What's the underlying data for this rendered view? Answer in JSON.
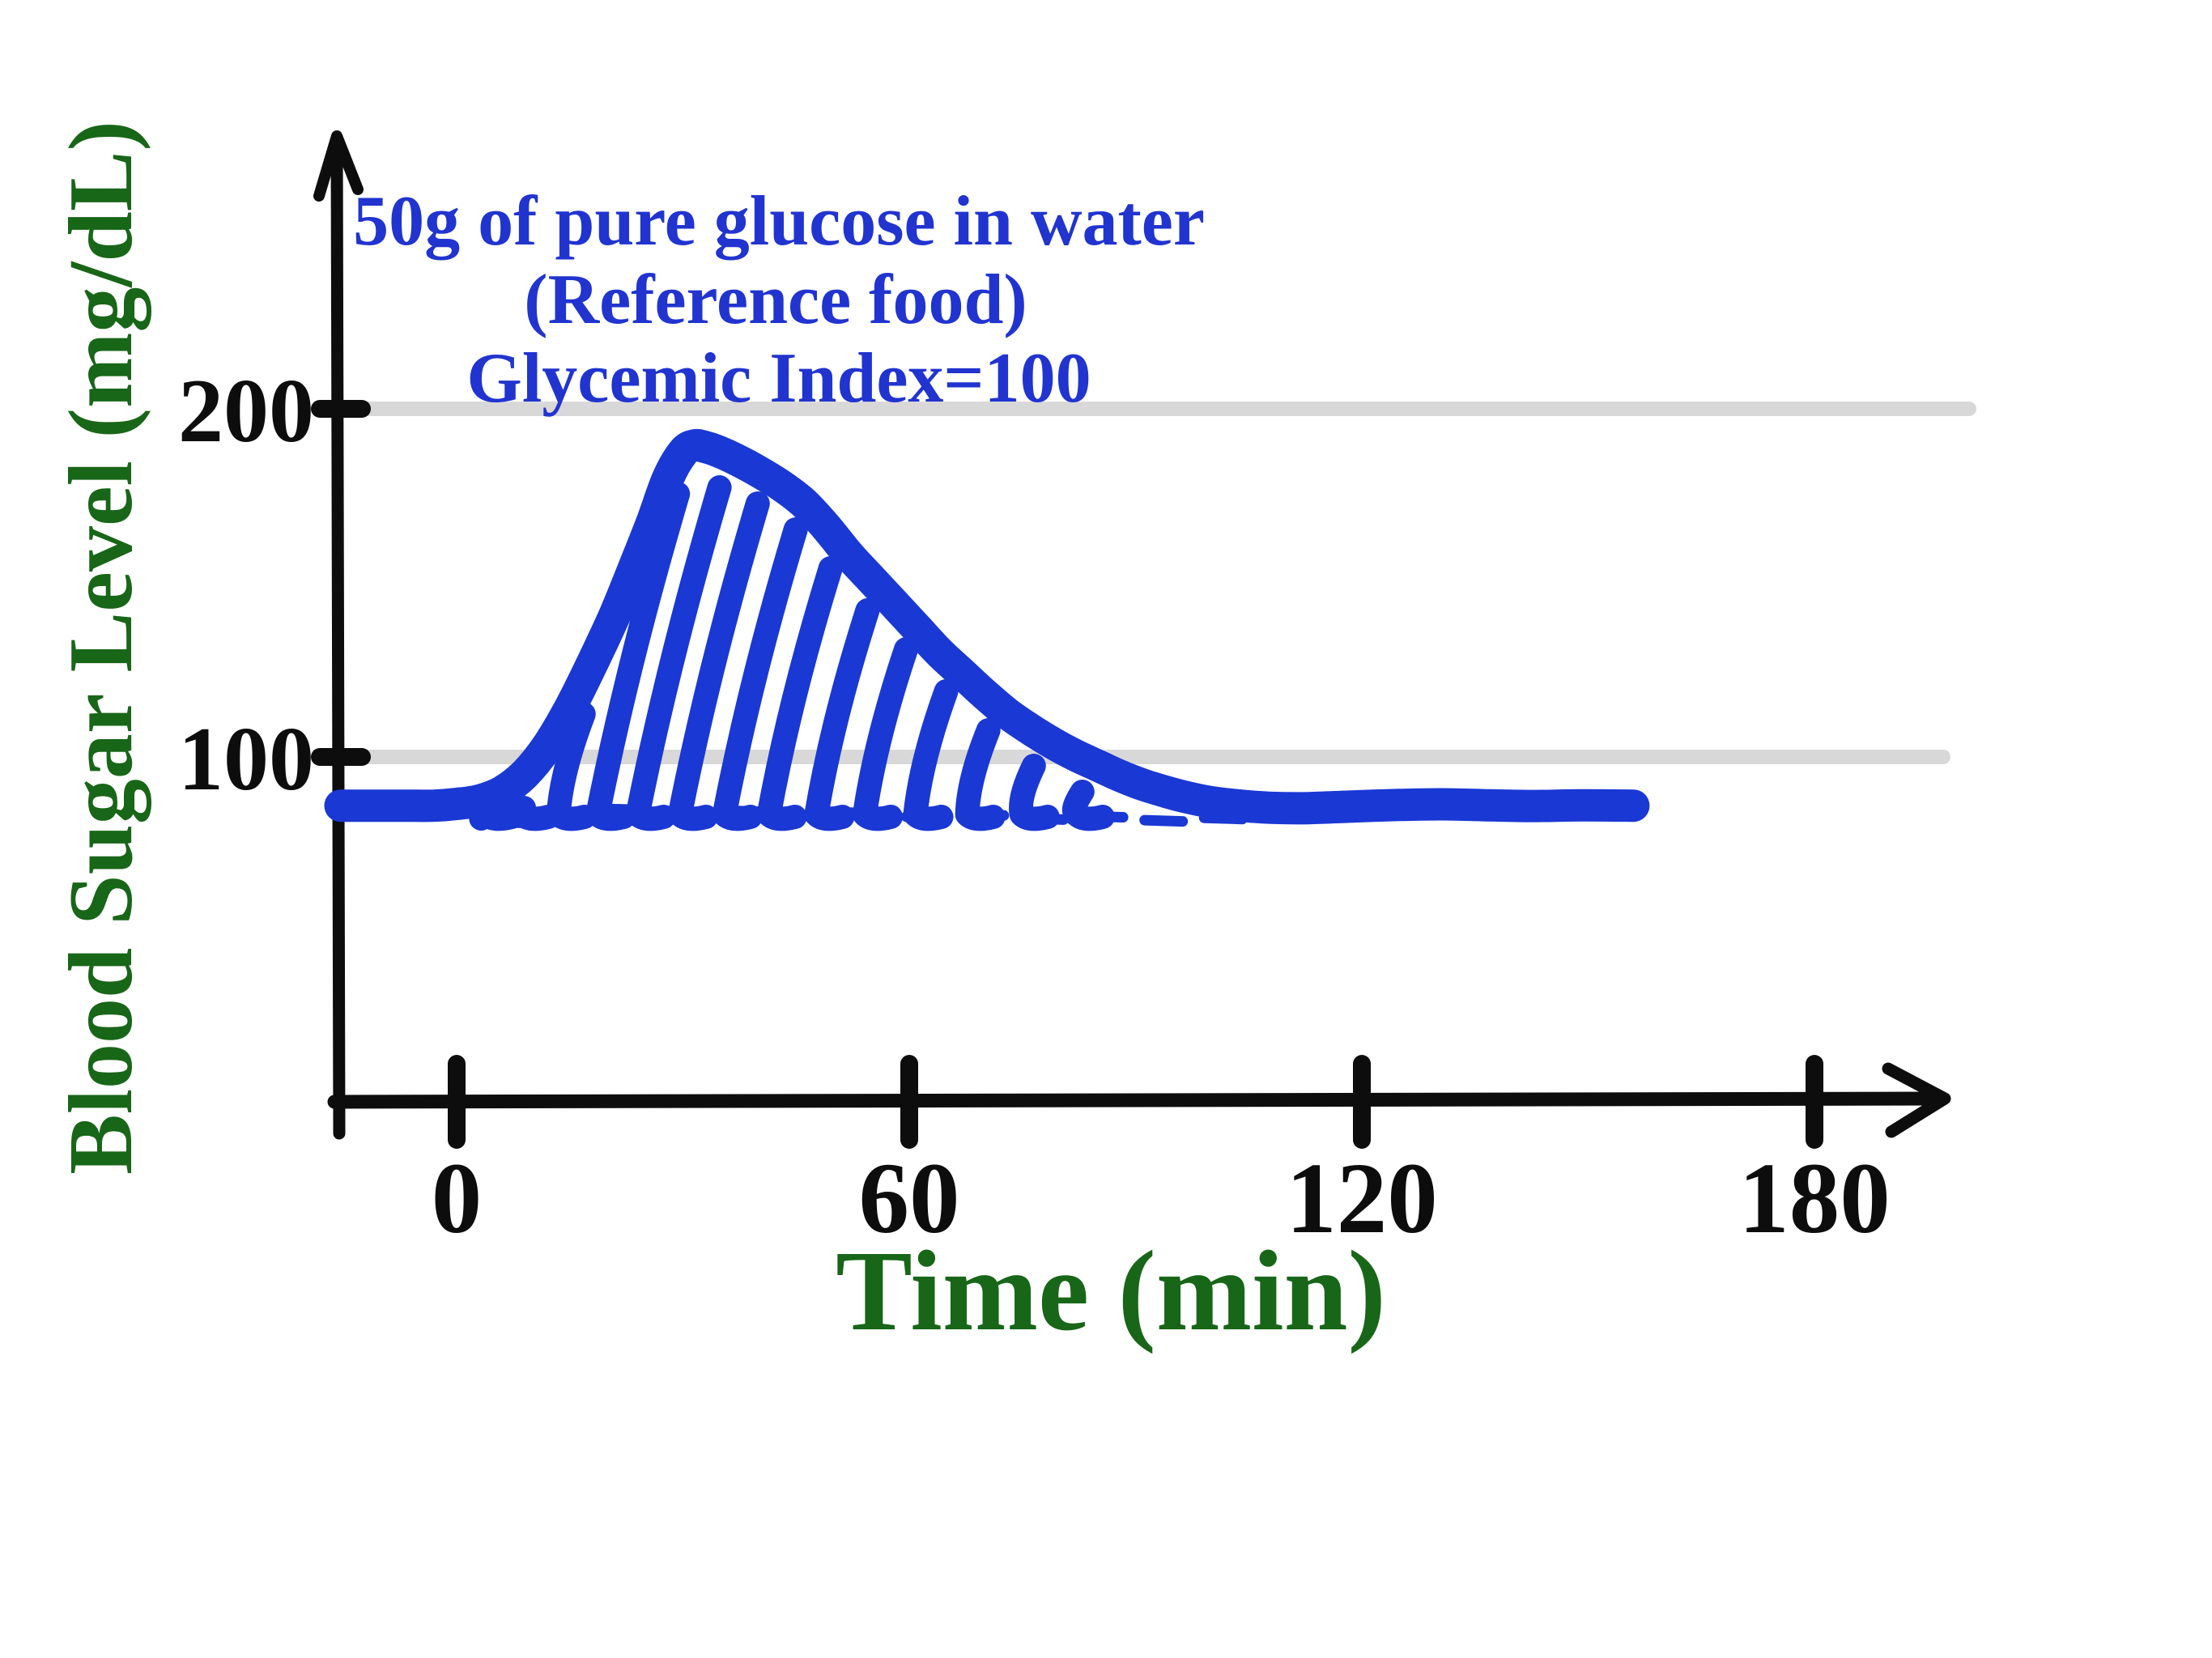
{
  "annotation": {
    "lines": [
      "50g of pure glucose in water",
      "(Reference food)",
      "Glycemic Index=100"
    ]
  },
  "y_axis": {
    "label": "Blood Sugar Level (mg/dL)",
    "ticks": [
      {
        "value": 100,
        "label": "100"
      },
      {
        "value": 200,
        "label": "200"
      }
    ]
  },
  "x_axis": {
    "label": "Time (min)",
    "ticks": [
      {
        "value": 0,
        "label": "0"
      },
      {
        "value": 60,
        "label": "60"
      },
      {
        "value": 120,
        "label": "120"
      },
      {
        "value": 180,
        "label": "180"
      }
    ]
  },
  "colors": {
    "curve_blue": "#1a38d4",
    "text_blue": "#2134cf",
    "axis_black": "#0d0d0d",
    "label_green": "#186618",
    "gridline_gray": "#d8d8d8"
  },
  "chart_data": {
    "type": "line",
    "title": "50g of pure glucose in water (Reference food) Glycemic Index=100",
    "xlabel": "Time (min)",
    "ylabel": "Blood Sugar Level (mg/dL)",
    "xlim": [
      -16,
      197
    ],
    "ylim": [
      0,
      265
    ],
    "x_ticks": [
      0,
      60,
      120,
      180
    ],
    "y_ticks": [
      100,
      200
    ],
    "grid": "horizontal-only",
    "legend": "none",
    "baseline_value": 86,
    "peak": {
      "time": 30,
      "value": 190
    },
    "curve_start_time": -15.4,
    "curve_end_time": 156,
    "series": [
      {
        "name": "blood-sugar-response-reference-food",
        "points": [
          [
            -15.4,
            86
          ],
          [
            -11,
            86
          ],
          [
            -7,
            86
          ],
          [
            -3,
            86
          ],
          [
            0,
            86.5
          ],
          [
            3,
            87.5
          ],
          [
            6,
            90
          ],
          [
            9,
            95
          ],
          [
            12,
            103
          ],
          [
            15,
            114
          ],
          [
            18,
            127
          ],
          [
            21,
            141
          ],
          [
            24,
            157
          ],
          [
            26,
            168
          ],
          [
            28,
            180
          ],
          [
            30,
            187.5
          ],
          [
            31.5,
            189.5
          ],
          [
            33,
            189
          ],
          [
            35,
            187.5
          ],
          [
            37,
            185.5
          ],
          [
            40,
            182
          ],
          [
            43,
            178
          ],
          [
            46,
            173
          ],
          [
            49,
            166
          ],
          [
            52,
            158
          ],
          [
            55,
            151
          ],
          [
            58,
            144
          ],
          [
            61,
            137
          ],
          [
            64,
            130
          ],
          [
            67,
            124
          ],
          [
            70,
            118
          ],
          [
            73,
            112.5
          ],
          [
            76,
            108
          ],
          [
            79,
            104
          ],
          [
            82,
            100.5
          ],
          [
            85,
            97.5
          ],
          [
            88,
            94.5
          ],
          [
            91,
            92
          ],
          [
            94,
            90
          ],
          [
            97,
            88.3
          ],
          [
            100,
            87
          ],
          [
            104,
            86
          ],
          [
            108,
            85.4
          ],
          [
            113,
            85.3
          ],
          [
            119,
            85.8
          ],
          [
            125,
            86.2
          ],
          [
            131,
            86.4
          ],
          [
            137,
            86.1
          ],
          [
            143,
            85.9
          ],
          [
            149,
            86.1
          ],
          [
            156,
            86
          ]
        ]
      }
    ],
    "hatch_area": {
      "style": "diagonal-pen-strokes",
      "meaning": "area between response curve and fasting baseline",
      "baseline_value": 84,
      "bottom_times": [
        3.9,
        8.7,
        13.5,
        18.7,
        24.0,
        29.6,
        35.5,
        41.4,
        47.7,
        54.1,
        60.8,
        67.7,
        74.9,
        82.2
      ]
    },
    "baseline_dash": {
      "value": 86,
      "from_time": 4.3,
      "to_time": 101
    }
  }
}
